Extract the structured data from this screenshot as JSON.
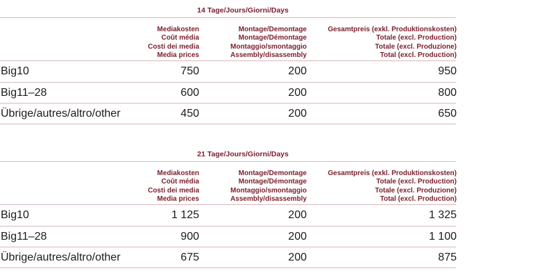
{
  "tables": [
    {
      "period": "14 Tage/Jours/Giorni/Days",
      "headers": {
        "media": [
          "Mediakosten",
          "Coût média",
          "Costi dei media",
          "Media prices"
        ],
        "assembly": [
          "Montage/Demontage",
          "Montage/Démontage",
          "Montaggio/smontaggio",
          "Assembly/disassembly"
        ],
        "total": [
          "Gesamtpreis (exkl. Produktionskosten)",
          "Totale (excl. Production)",
          "Totale (excl. Produzione)",
          "Total (excl. Production)"
        ]
      },
      "rows": [
        {
          "name": "Big10",
          "media": "750",
          "assembly": "200",
          "total": "950"
        },
        {
          "name": "Big11–28",
          "media": "600",
          "assembly": "200",
          "total": "800"
        },
        {
          "name": "Übrige/autres/altro/other",
          "media": "450",
          "assembly": "200",
          "total": "650"
        }
      ]
    },
    {
      "period": "21 Tage/Jours/Giorni/Days",
      "headers": {
        "media": [
          "Mediakosten",
          "Coût média",
          "Costi dei media",
          "Media prices"
        ],
        "assembly": [
          "Montage/Demontage",
          "Montage/Démontage",
          "Montaggio/smontaggio",
          "Assembly/disassembly"
        ],
        "total": [
          "Gesamtpreis (exkl. Produktionskosten)",
          "Totale (excl. Production)",
          "Totale (excl. Produzione)",
          "Total (excl. Production)"
        ]
      },
      "rows": [
        {
          "name": "Big10",
          "media": "1 125",
          "assembly": "200",
          "total": "1 325"
        },
        {
          "name": "Big11–28",
          "media": "900",
          "assembly": "200",
          "total": "1 100"
        },
        {
          "name": "Übrige/autres/altro/other",
          "media": "675",
          "assembly": "200",
          "total": "875"
        }
      ]
    }
  ]
}
